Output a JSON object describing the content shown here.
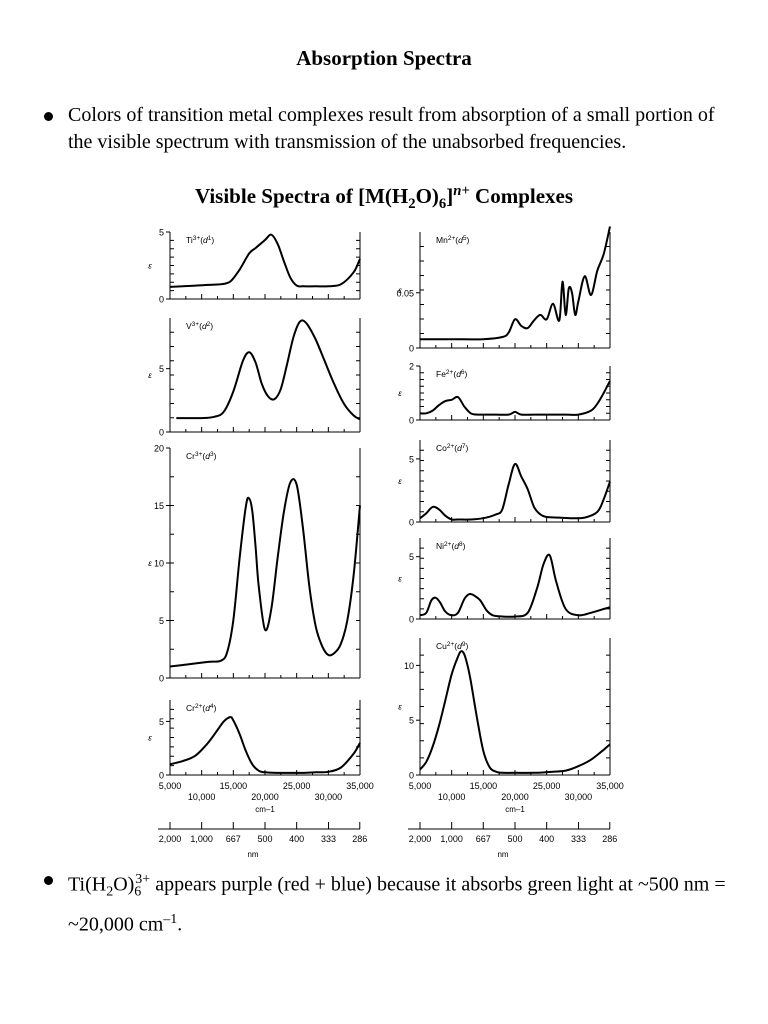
{
  "title": "Absorption Spectra",
  "bullet1": "Colors of transition metal complexes result from absorption of a small portion of the visible spectrum with transmission of the unabsorbed frequencies.",
  "chart_heading": {
    "pre": "Visible Spectra of [M(H",
    "sub1": "2",
    "mid": "O)",
    "sub2": "6",
    "close": "]",
    "sup": "n+",
    "post": " Complexes"
  },
  "bullet2": {
    "pre": "Ti(H",
    "sub1": "2",
    "mid": "O)",
    "sub2": "6",
    "sup": "3+",
    "post": " appears purple (red + blue) because it absorbs green light at ~500 nm = ~20,000 cm",
    "sup2": "–1",
    "end": "."
  },
  "colors": {
    "text": "#000000",
    "background": "#ffffff"
  },
  "chart_data": [
    {
      "type": "line",
      "label_main": "Ti",
      "label_sup": "3+",
      "label_d": "1",
      "ylim": [
        0,
        5
      ],
      "yticks": [
        0,
        5
      ],
      "ylabel": "ε",
      "series": [
        {
          "x": [
            5000,
            7000,
            9000,
            11000,
            13000,
            14500,
            16000,
            17500,
            18500,
            20000,
            21000,
            22000,
            23000,
            24000,
            25000,
            26000,
            28000,
            30000,
            32000,
            34000,
            35000
          ],
          "values": [
            0.9,
            0.95,
            1.0,
            1.05,
            1.1,
            1.3,
            2.2,
            3.4,
            3.8,
            4.4,
            4.8,
            4.1,
            2.8,
            1.6,
            1.0,
            0.95,
            0.95,
            0.95,
            1.1,
            2.0,
            3.0
          ]
        }
      ]
    },
    {
      "type": "line",
      "label_main": "V",
      "label_sup": "3+",
      "label_d": "2",
      "ylim": [
        0,
        9
      ],
      "yticks": [
        0,
        5
      ],
      "ylabel": "ε",
      "series": [
        {
          "x": [
            6000,
            8000,
            10000,
            12000,
            13500,
            15000,
            16500,
            17500,
            18500,
            19500,
            20500,
            21500,
            22500,
            23500,
            24500,
            25500,
            26500,
            28000,
            29500,
            31000,
            32500,
            34000,
            35000
          ],
          "values": [
            1.1,
            1.1,
            1.1,
            1.2,
            1.6,
            3.2,
            5.6,
            6.3,
            5.5,
            3.8,
            2.8,
            2.6,
            3.4,
            5.4,
            7.5,
            8.7,
            8.6,
            7.3,
            5.5,
            3.7,
            2.2,
            1.3,
            1.0
          ]
        }
      ]
    },
    {
      "type": "line",
      "label_main": "Cr",
      "label_sup": "3+",
      "label_d": "3",
      "ylim": [
        0,
        20
      ],
      "yticks": [
        0,
        5,
        10,
        15,
        20
      ],
      "ylabel": "ε",
      "series": [
        {
          "x": [
            5000,
            8000,
            11000,
            13000,
            14000,
            15000,
            16000,
            17000,
            17500,
            18000,
            18500,
            19000,
            20000,
            21000,
            22000,
            23000,
            24000,
            25000,
            26000,
            27000,
            28000,
            29000,
            30000,
            31000,
            32000,
            33000,
            34000,
            35000
          ],
          "values": [
            1.0,
            1.2,
            1.4,
            1.5,
            2.2,
            5.0,
            10.5,
            15.0,
            15.6,
            14.5,
            11.5,
            8.0,
            4.2,
            6.0,
            10.5,
            14.5,
            17.0,
            16.8,
            13.0,
            8.0,
            4.5,
            2.8,
            2.0,
            2.2,
            3.0,
            5.0,
            9.0,
            15.0
          ]
        }
      ]
    },
    {
      "type": "line",
      "label_main": "Cr",
      "label_sup": "2+",
      "label_d": "4",
      "ylim": [
        0,
        7
      ],
      "yticks": [
        0,
        5
      ],
      "ylabel": "ε",
      "series": [
        {
          "x": [
            5000,
            7000,
            9000,
            11000,
            12500,
            13500,
            14500,
            15000,
            16000,
            17000,
            18000,
            19000,
            20000,
            22000,
            24000,
            26000,
            28000,
            30000,
            32000,
            34000,
            35000
          ],
          "values": [
            1.0,
            1.3,
            1.8,
            3.0,
            4.2,
            5.0,
            5.4,
            5.1,
            3.8,
            2.2,
            1.0,
            0.4,
            0.25,
            0.2,
            0.2,
            0.2,
            0.25,
            0.3,
            0.7,
            2.0,
            3.0
          ]
        }
      ]
    },
    {
      "type": "line",
      "label_main": "Mn",
      "label_sup": "2+",
      "label_d": "5",
      "ylim": [
        0,
        0.105
      ],
      "yticks": [
        0,
        0.05
      ],
      "ylabel": "ε",
      "series": [
        {
          "x": [
            5000,
            10000,
            15000,
            18000,
            19000,
            20000,
            21000,
            22000,
            23000,
            24000,
            25000,
            26000,
            27000,
            27500,
            28000,
            28500,
            29000,
            29500,
            30000,
            31000,
            32000,
            33000,
            34000,
            35000
          ],
          "values": [
            0.008,
            0.008,
            0.008,
            0.01,
            0.014,
            0.026,
            0.02,
            0.018,
            0.025,
            0.03,
            0.026,
            0.04,
            0.025,
            0.06,
            0.03,
            0.054,
            0.05,
            0.03,
            0.042,
            0.065,
            0.048,
            0.07,
            0.085,
            0.11
          ]
        }
      ]
    },
    {
      "type": "line",
      "label_main": "Fe",
      "label_sup": "2+",
      "label_d": "6",
      "ylim": [
        0,
        2.0
      ],
      "yticks": [
        0,
        2.0
      ],
      "ylabel": "ε",
      "series": [
        {
          "x": [
            5000,
            6000,
            7000,
            8000,
            9000,
            10000,
            11000,
            12000,
            13000,
            14000,
            15000,
            17000,
            19000,
            20000,
            21000,
            23000,
            25000,
            28000,
            30000,
            32000,
            33000,
            34000,
            35000
          ],
          "values": [
            0.25,
            0.25,
            0.35,
            0.55,
            0.7,
            0.75,
            0.85,
            0.5,
            0.25,
            0.2,
            0.2,
            0.2,
            0.2,
            0.3,
            0.2,
            0.2,
            0.2,
            0.2,
            0.2,
            0.35,
            0.6,
            1.0,
            1.45
          ]
        }
      ]
    },
    {
      "type": "line",
      "label_main": "Co",
      "label_sup": "2+",
      "label_d": "7",
      "ylim": [
        0,
        6.5
      ],
      "yticks": [
        0,
        5
      ],
      "ylabel": "ε",
      "series": [
        {
          "x": [
            5000,
            6000,
            7000,
            8000,
            9000,
            10000,
            11000,
            13000,
            15000,
            17000,
            18000,
            19000,
            20000,
            21000,
            22000,
            23000,
            24000,
            25000,
            27000,
            29000,
            31000,
            33000,
            34000,
            35000
          ],
          "values": [
            0.3,
            0.7,
            1.2,
            1.0,
            0.5,
            0.2,
            0.2,
            0.2,
            0.3,
            0.6,
            1.0,
            3.0,
            4.6,
            3.6,
            2.6,
            1.2,
            0.6,
            0.4,
            0.35,
            0.3,
            0.35,
            0.8,
            1.8,
            3.2
          ]
        }
      ]
    },
    {
      "type": "line",
      "label_main": "Ni",
      "label_sup": "2+",
      "label_d": "8",
      "ylim": [
        0,
        6.5
      ],
      "yticks": [
        0,
        5
      ],
      "ylabel": "ε",
      "series": [
        {
          "x": [
            5000,
            6000,
            6800,
            7500,
            8200,
            9000,
            10000,
            11000,
            12000,
            12800,
            13500,
            14500,
            15500,
            16500,
            18000,
            20000,
            22000,
            23500,
            24500,
            25500,
            26500,
            28000,
            30000,
            32000,
            34000,
            35000
          ],
          "values": [
            0.3,
            0.5,
            1.5,
            1.7,
            1.3,
            0.6,
            0.3,
            0.5,
            1.6,
            2.0,
            1.9,
            1.5,
            0.7,
            0.3,
            0.2,
            0.2,
            0.5,
            2.5,
            4.4,
            5.1,
            3.0,
            0.8,
            0.3,
            0.5,
            0.8,
            0.95
          ]
        }
      ]
    },
    {
      "type": "line",
      "label_main": "Cu",
      "label_sup": "2+",
      "label_d": "9",
      "ylim": [
        0,
        12.5
      ],
      "yticks": [
        0,
        5,
        10
      ],
      "ylabel": "ε",
      "series": [
        {
          "x": [
            5000,
            6000,
            7000,
            8000,
            9000,
            10000,
            11000,
            11500,
            12000,
            12500,
            13000,
            14000,
            15000,
            16000,
            17000,
            18000,
            20000,
            23000,
            26000,
            28000,
            30000,
            32000,
            34000,
            35000
          ],
          "values": [
            0.5,
            1.2,
            2.6,
            4.5,
            6.8,
            9.2,
            10.8,
            11.3,
            11.0,
            10.0,
            8.6,
            5.2,
            2.2,
            0.7,
            0.3,
            0.2,
            0.2,
            0.2,
            0.3,
            0.4,
            0.8,
            1.4,
            2.3,
            2.8
          ]
        }
      ]
    }
  ],
  "axis": {
    "xlim": [
      5000,
      35000
    ],
    "wavenumber_labels_top": [
      "5,000",
      "15,000",
      "25,000",
      "35,000"
    ],
    "wavenumber_labels_bottom": [
      "10,000",
      "20,000",
      "30,000"
    ],
    "wavenumber_unit": "cm–1",
    "nm_labels": [
      "2,000",
      "1,000",
      "667",
      "500",
      "400",
      "333",
      "286"
    ],
    "nm_unit": "nm",
    "y_symbol": "ε"
  }
}
